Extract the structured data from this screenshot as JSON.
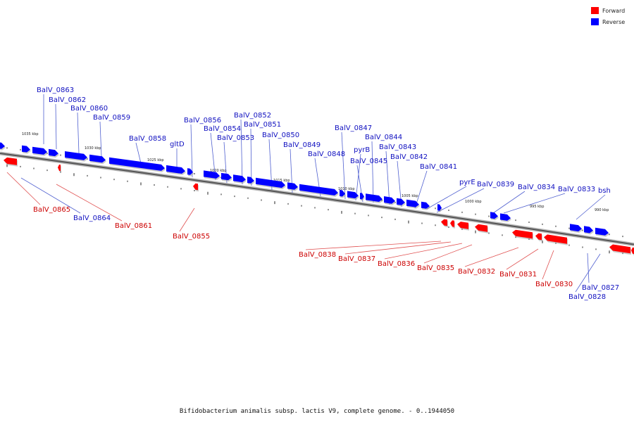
{
  "caption": "Bifidobacterium animalis subsp. lactis V9, complete genome. - 0..1944050",
  "legend": [
    {
      "label": "Forward",
      "color": "#ff0000"
    },
    {
      "label": "Reverse",
      "color": "#0000ff"
    }
  ],
  "colors": {
    "forward": "#ff0000",
    "reverse": "#0000ff",
    "backbone": "#808080"
  },
  "scale_labels": [
    "1035 kbp",
    "1030 kbp",
    "1025 kbp",
    "1020 kbp",
    "1015 kbp",
    "1010 kbp",
    "1005 kbp",
    "1000 kbp",
    "995 kbp",
    "990 kbp"
  ],
  "genes": [
    {
      "name": "BalV_0863",
      "strand": "reverse"
    },
    {
      "name": "BalV_0862",
      "strand": "reverse"
    },
    {
      "name": "BalV_0860",
      "strand": "reverse"
    },
    {
      "name": "BalV_0859",
      "strand": "reverse"
    },
    {
      "name": "BalV_0858",
      "strand": "reverse"
    },
    {
      "name": "gltD",
      "strand": "reverse"
    },
    {
      "name": "BalV_0856",
      "strand": "reverse"
    },
    {
      "name": "BalV_0854",
      "strand": "reverse"
    },
    {
      "name": "BalV_0853",
      "strand": "reverse"
    },
    {
      "name": "BalV_0852",
      "strand": "reverse"
    },
    {
      "name": "BalV_0851",
      "strand": "reverse"
    },
    {
      "name": "BalV_0850",
      "strand": "reverse"
    },
    {
      "name": "BalV_0849",
      "strand": "reverse"
    },
    {
      "name": "BalV_0848",
      "strand": "reverse"
    },
    {
      "name": "BalV_0847",
      "strand": "reverse"
    },
    {
      "name": "pyrB",
      "strand": "reverse"
    },
    {
      "name": "BalV_0845",
      "strand": "reverse"
    },
    {
      "name": "BalV_0844",
      "strand": "reverse"
    },
    {
      "name": "BalV_0843",
      "strand": "reverse"
    },
    {
      "name": "BalV_0842",
      "strand": "reverse"
    },
    {
      "name": "BalV_0841",
      "strand": "reverse"
    },
    {
      "name": "pyrE",
      "strand": "reverse"
    },
    {
      "name": "BalV_0839",
      "strand": "reverse"
    },
    {
      "name": "BalV_0834",
      "strand": "reverse"
    },
    {
      "name": "BalV_0833",
      "strand": "reverse"
    },
    {
      "name": "bsh",
      "strand": "reverse"
    },
    {
      "name": "BalV_0865",
      "strand": "forward"
    },
    {
      "name": "BalV_0864",
      "strand": "reverse"
    },
    {
      "name": "BalV_0861",
      "strand": "forward"
    },
    {
      "name": "BalV_0855",
      "strand": "forward"
    },
    {
      "name": "BalV_0838",
      "strand": "forward"
    },
    {
      "name": "BalV_0837",
      "strand": "forward"
    },
    {
      "name": "BalV_0836",
      "strand": "forward"
    },
    {
      "name": "BalV_0835",
      "strand": "forward"
    },
    {
      "name": "BalV_0832",
      "strand": "forward"
    },
    {
      "name": "BalV_0831",
      "strand": "forward"
    },
    {
      "name": "BalV_0830",
      "strand": "forward"
    },
    {
      "name": "BalV_0827",
      "strand": "reverse"
    },
    {
      "name": "BalV_0828",
      "strand": "reverse"
    }
  ]
}
